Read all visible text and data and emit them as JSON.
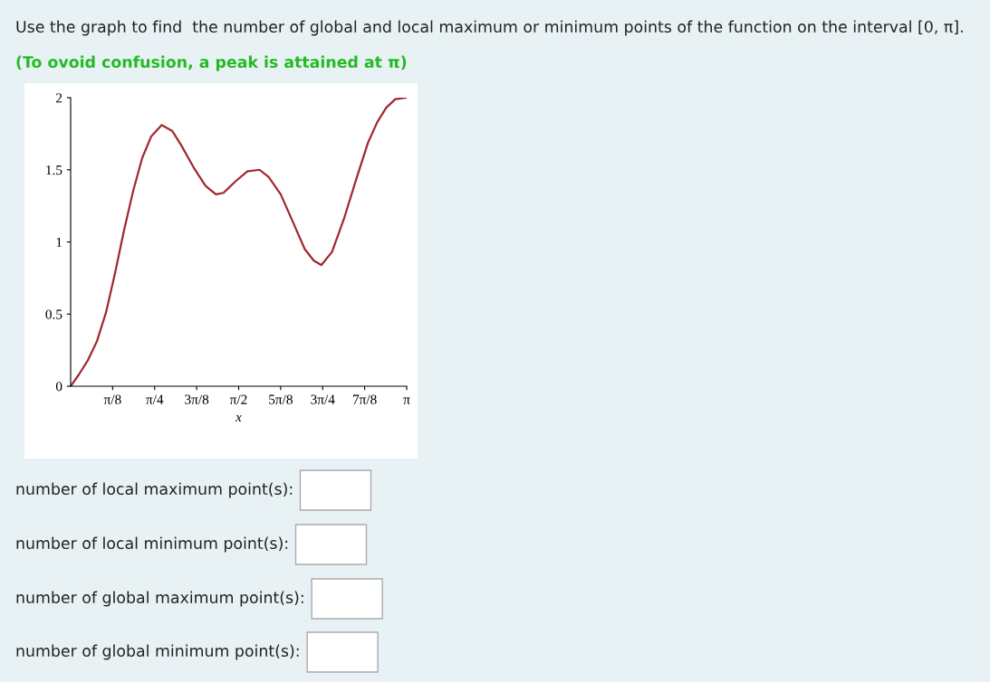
{
  "chart_data": {
    "type": "line",
    "title": "Use the graph to find  the number of global and local maximum or minimum points of the function on the interval [0, π].",
    "subtitle": "(To ovoid confusion, a peak is attained at π)",
    "xlabel": "x",
    "x": [
      0,
      0.076,
      0.161,
      0.245,
      0.33,
      0.414,
      0.499,
      0.583,
      0.668,
      0.752,
      0.851,
      0.949,
      1.034,
      1.147,
      1.26,
      1.358,
      1.429,
      1.541,
      1.653,
      1.766,
      1.851,
      1.964,
      2.077,
      2.189,
      2.274,
      2.344,
      2.443,
      2.555,
      2.668,
      2.781,
      2.866,
      2.95,
      3.035,
      3.1416
    ],
    "series": [
      {
        "color": "#a0282f",
        "values": [
          0,
          0.08,
          0.18,
          0.31,
          0.51,
          0.78,
          1.08,
          1.35,
          1.58,
          1.73,
          1.81,
          1.77,
          1.67,
          1.52,
          1.39,
          1.33,
          1.34,
          1.42,
          1.49,
          1.5,
          1.45,
          1.33,
          1.14,
          0.95,
          0.87,
          0.84,
          0.93,
          1.16,
          1.43,
          1.69,
          1.83,
          1.93,
          1.99,
          2.0
        ]
      }
    ],
    "xlim": [
      0,
      3.1416
    ],
    "ylim": [
      0,
      2
    ],
    "xticks": [
      {
        "value": 0.3927,
        "label": "π/8"
      },
      {
        "value": 0.7854,
        "label": "π/4"
      },
      {
        "value": 1.1781,
        "label": "3π/8"
      },
      {
        "value": 1.5708,
        "label": "π/2"
      },
      {
        "value": 1.9635,
        "label": "5π/8"
      },
      {
        "value": 2.3562,
        "label": "3π/4"
      },
      {
        "value": 2.7489,
        "label": "7π/8"
      },
      {
        "value": 3.1416,
        "label": "π"
      }
    ],
    "yticks": [
      0,
      0.5,
      1,
      1.5,
      2
    ],
    "grid": false,
    "legend": false,
    "marker": "none",
    "line_style": "solid",
    "annotations": [
      "number of local maximum point(s):",
      "number of local minimum point(s):",
      "number of global maximum point(s):",
      "number of global minimum point(s):"
    ]
  }
}
